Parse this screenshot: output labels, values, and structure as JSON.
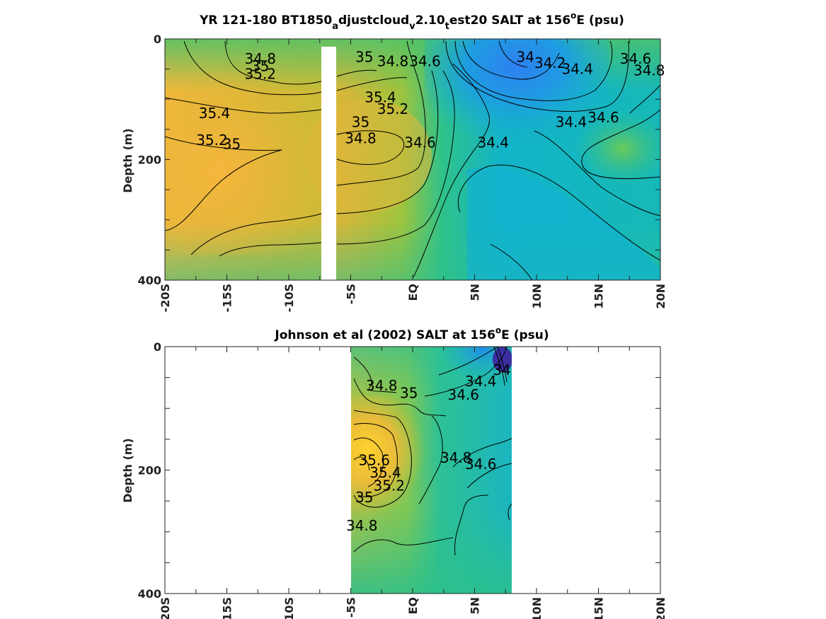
{
  "chart_data": [
    {
      "type": "heatmap",
      "title": {
        "pre": "YR 121-180 BT1850",
        "sub1": "a",
        "mid1": "djustcloud",
        "sub2": "v",
        "mid2": "2.10",
        "sub3": "t",
        "mid3": "est20 SALT at 156",
        "sup": "o",
        "post": "E (psu)"
      },
      "ylabel": "Depth (m)",
      "yticks": [
        "0",
        "200",
        "400"
      ],
      "ylim": [
        400,
        0
      ],
      "xticks": [
        "-20S",
        "-15S",
        "-10S",
        "-5S",
        "EQ",
        "5N",
        "10N",
        "15N",
        "20N"
      ],
      "xlim": [
        -20,
        20
      ],
      "missing_x_range": [
        -7.2,
        -6.0
      ],
      "colorbar_range": [
        34.0,
        35.6
      ],
      "contour_labels": [
        {
          "text": "34.8",
          "x": -12.3,
          "y": 33
        },
        {
          "text": "35",
          "x": -12.3,
          "y": 45
        },
        {
          "text": "35.2",
          "x": -12.3,
          "y": 58
        },
        {
          "text": "35.4",
          "x": -16,
          "y": 123
        },
        {
          "text": "35.2",
          "x": -16.2,
          "y": 168
        },
        {
          "text": "35",
          "x": -14.6,
          "y": 174
        },
        {
          "text": "35",
          "x": -3.9,
          "y": 30
        },
        {
          "text": "34.8",
          "x": -1.6,
          "y": 37
        },
        {
          "text": "34.6",
          "x": 1.0,
          "y": 37
        },
        {
          "text": "35.4",
          "x": -2.6,
          "y": 97
        },
        {
          "text": "35.2",
          "x": -1.6,
          "y": 116
        },
        {
          "text": "35",
          "x": -4.2,
          "y": 138
        },
        {
          "text": "34.8",
          "x": -4.2,
          "y": 165
        },
        {
          "text": "34.6",
          "x": 0.6,
          "y": 172
        },
        {
          "text": "34.4",
          "x": 6.5,
          "y": 172
        },
        {
          "text": "34",
          "x": 9.1,
          "y": 30
        },
        {
          "text": "34.2",
          "x": 11.1,
          "y": 40
        },
        {
          "text": "34.4",
          "x": 13.3,
          "y": 50
        },
        {
          "text": "34.6",
          "x": 18.0,
          "y": 33
        },
        {
          "text": "34.8",
          "x": 19.1,
          "y": 52
        },
        {
          "text": "34.4",
          "x": 12.8,
          "y": 138
        },
        {
          "text": "34.6",
          "x": 15.4,
          "y": 130
        }
      ]
    },
    {
      "type": "heatmap",
      "title": {
        "pre": "Johnson et al (2002) SALT at 156",
        "sup": "o",
        "post": "E (psu)"
      },
      "ylabel": "Depth (m)",
      "yticks": [
        "0",
        "200",
        "400"
      ],
      "ylim": [
        400,
        0
      ],
      "xticks": [
        "-20S",
        "-15S",
        "-10S",
        "-5S",
        "EQ",
        "5N",
        "10N",
        "15N",
        "20N"
      ],
      "xlim": [
        -20,
        20
      ],
      "data_x_range": [
        -5.0,
        8.0
      ],
      "colorbar_range": [
        34.0,
        35.6
      ],
      "contour_labels": [
        {
          "text": "34.8",
          "x": -2.5,
          "y": 63
        },
        {
          "text": "35",
          "x": -0.3,
          "y": 75
        },
        {
          "text": "34.4",
          "x": 5.5,
          "y": 56
        },
        {
          "text": "34.6",
          "x": 4.1,
          "y": 78
        },
        {
          "text": "34",
          "x": 7.2,
          "y": 38
        },
        {
          "text": "35.6",
          "x": -3.1,
          "y": 184
        },
        {
          "text": "35.4",
          "x": -2.2,
          "y": 204
        },
        {
          "text": "35.2",
          "x": -1.9,
          "y": 225
        },
        {
          "text": "35",
          "x": -3.9,
          "y": 244
        },
        {
          "text": "34.8",
          "x": 3.5,
          "y": 180
        },
        {
          "text": "34.6",
          "x": 5.5,
          "y": 190
        },
        {
          "text": "34.8",
          "x": -4.1,
          "y": 290
        }
      ]
    }
  ]
}
